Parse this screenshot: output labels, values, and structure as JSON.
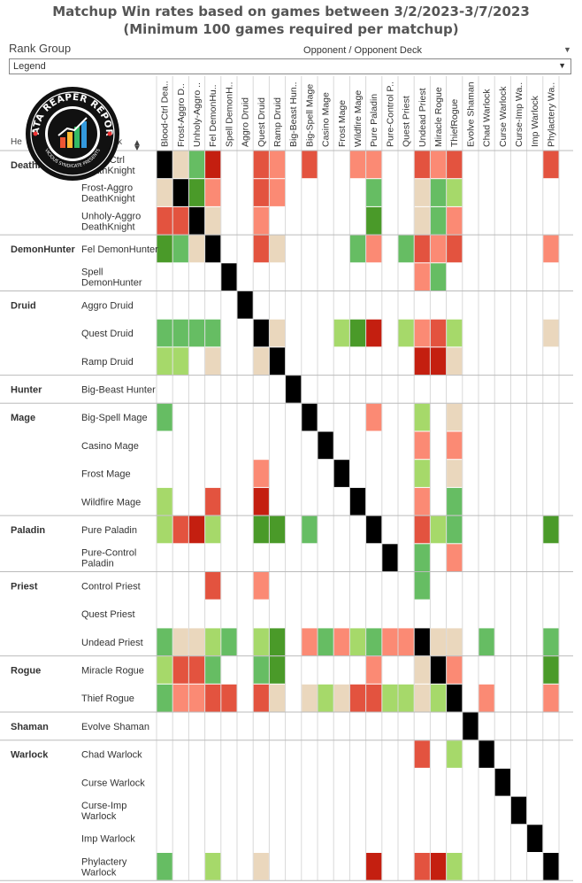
{
  "header": {
    "title_line1": "Matchup Win rates based on games between 3/2/2023-3/7/2023",
    "title_line2": "(Minimum 100 games required per matchup)"
  },
  "filters": {
    "rank_group_label": "Rank Group",
    "rank_group_value": "Legend",
    "opponent_header": "Opponent / Opponent Deck"
  },
  "logo": {
    "top_text": "DATA REAPER REPORT",
    "bottom_text": "VICIOUS SYNDICATE PRESENTS"
  },
  "colors": {
    "black": "#000000",
    "neutral": "#ead7bd",
    "light_green": "#a6d96a",
    "mid_green": "#66bd63",
    "dark_green": "#4a9a29",
    "light_red": "#fb8a74",
    "mid_red": "#e3533f",
    "dark_red": "#c41f10"
  },
  "chart_data": {
    "type": "heatmap",
    "title": "Matchup Win rates based on games between 3/2/2023-3/7/2023",
    "subtitle": "(Minimum 100 games required per matchup)",
    "row_header_fragments": [
      "He",
      "k"
    ],
    "columns": [
      "Blood-Ctrl Dea..",
      "Frost-Aggro D..",
      "Unholy-Aggro ..",
      "Fel DemonHu..",
      "Spell DemonH..",
      "Aggro Druid",
      "Quest Druid",
      "Ramp Druid",
      "Big-Beast Hun..",
      "Big-Spell Mage",
      "Casino Mage",
      "Frost Mage",
      "Wildfire Mage",
      "Pure Paladin",
      "Pure-Control P..",
      "Quest Priest",
      "Undead Priest",
      "Miracle Rogue",
      "ThiefRogue",
      "Evolve Shaman",
      "Chad Warlock",
      "Curse Warlock",
      "Curse-Imp Wa..",
      "Imp Warlock",
      "Phylactery Wa.."
    ],
    "groups": [
      {
        "class": "DeathKnight",
        "rows": [
          "Blood-Ctrl DeathKnight",
          "Frost-Aggro DeathKnight",
          "Unholy-Aggro DeathKnight"
        ]
      },
      {
        "class": "DemonHunter",
        "rows": [
          "Fel DemonHunter",
          "Spell DemonHunter"
        ]
      },
      {
        "class": "Druid",
        "rows": [
          "Aggro Druid",
          "Quest Druid",
          "Ramp Druid"
        ]
      },
      {
        "class": "Hunter",
        "rows": [
          "Big-Beast Hunter"
        ]
      },
      {
        "class": "Mage",
        "rows": [
          "Big-Spell Mage",
          "Casino Mage",
          "Frost Mage",
          "Wildfire Mage"
        ]
      },
      {
        "class": "Paladin",
        "rows": [
          "Pure Paladin",
          "Pure-Control Paladin"
        ]
      },
      {
        "class": "Priest",
        "rows": [
          "Control Priest",
          "Quest Priest",
          "Undead Priest"
        ]
      },
      {
        "class": "Rogue",
        "rows": [
          "Miracle Rogue",
          "Thief Rogue"
        ]
      },
      {
        "class": "Shaman",
        "rows": [
          "Evolve Shaman"
        ]
      },
      {
        "class": "Warlock",
        "rows": [
          "Chad Warlock",
          "Curse Warlock",
          "Curse-Imp Warlock",
          "Imp Warlock",
          "Phylactery Warlock"
        ]
      }
    ],
    "row_labels": [
      [
        "Blood-Ctrl",
        "DeathKnight"
      ],
      [
        "Frost-Aggro",
        "DeathKnight"
      ],
      [
        "Unholy-Aggro",
        "DeathKnight"
      ],
      [
        "Fel DemonHunter"
      ],
      [
        "Spell",
        "DemonHunter"
      ],
      [
        "Aggro Druid"
      ],
      [
        "Quest Druid"
      ],
      [
        "Ramp Druid"
      ],
      [
        "Big-Beast Hunter"
      ],
      [
        "Big-Spell Mage"
      ],
      [
        "Casino Mage"
      ],
      [
        "Frost Mage"
      ],
      [
        "Wildfire Mage"
      ],
      [
        "Pure Paladin"
      ],
      [
        "Pure-Control",
        "Paladin"
      ],
      [
        "Control Priest"
      ],
      [
        "Quest Priest"
      ],
      [
        "Undead Priest"
      ],
      [
        "Miracle Rogue"
      ],
      [
        "Thief Rogue"
      ],
      [
        "Evolve Shaman"
      ],
      [
        "Chad Warlock"
      ],
      [
        "Curse Warlock"
      ],
      [
        "Curse-Imp",
        "Warlock"
      ],
      [
        "Imp Warlock"
      ],
      [
        "Phylactery",
        "Warlock"
      ]
    ],
    "row_class_labels": [
      "DeathKnight",
      "",
      "",
      "DemonHunter",
      "",
      "Druid",
      "",
      "",
      "Hunter",
      "Mage",
      "",
      "",
      "",
      "Paladin",
      "",
      "Priest",
      "",
      "",
      "Rogue",
      "",
      "Shaman",
      "Warlock",
      "",
      "",
      "",
      ""
    ],
    "row_column_index": [
      0,
      1,
      2,
      3,
      4,
      5,
      6,
      7,
      8,
      9,
      10,
      11,
      12,
      13,
      14,
      null,
      15,
      16,
      17,
      18,
      19,
      20,
      21,
      22,
      23,
      24
    ],
    "legend_note": "cell codes: K=mirror, N=neutral, LG=light green, MG=mid green, DG=dark green, LR=light red, MR=mid red, DR=dark red, blank=insufficient games",
    "cells": [
      [
        "K",
        "N",
        "MG",
        "DR",
        "",
        "",
        "MR",
        "LR",
        "",
        "MR",
        "",
        "",
        "LR",
        "LR",
        "",
        "",
        "MR",
        "LR",
        "MR",
        "",
        "",
        "",
        "",
        "",
        "MR"
      ],
      [
        "N",
        "K",
        "DG",
        "LR",
        "",
        "",
        "MR",
        "LR",
        "",
        "",
        "",
        "",
        "",
        "MG",
        "",
        "",
        "N",
        "MG",
        "LG",
        "",
        "",
        "",
        "",
        "",
        ""
      ],
      [
        "MR",
        "MR",
        "K",
        "N",
        "",
        "",
        "LR",
        "",
        "",
        "",
        "",
        "",
        "",
        "DG",
        "",
        "",
        "N",
        "MG",
        "LR",
        "",
        "",
        "",
        "",
        "",
        ""
      ],
      [
        "DG",
        "MG",
        "N",
        "K",
        "",
        "",
        "MR",
        "N",
        "",
        "",
        "",
        "",
        "MG",
        "LR",
        "",
        "MG",
        "MR",
        "LR",
        "MR",
        "",
        "",
        "",
        "",
        "",
        "LR"
      ],
      [
        "",
        "",
        "",
        "",
        "K",
        "",
        "",
        "",
        "",
        "",
        "",
        "",
        "",
        "",
        "",
        "",
        "LR",
        "MG",
        "",
        "",
        "",
        "",
        "",
        "",
        ""
      ],
      [
        "",
        "",
        "",
        "",
        "",
        "K",
        "",
        "",
        "",
        "",
        "",
        "",
        "",
        "",
        "",
        "",
        "",
        "",
        "",
        "",
        "",
        "",
        "",
        "",
        ""
      ],
      [
        "MG",
        "MG",
        "MG",
        "MG",
        "",
        "",
        "K",
        "N",
        "",
        "",
        "",
        "LG",
        "DG",
        "DR",
        "",
        "LG",
        "LR",
        "MR",
        "LG",
        "",
        "",
        "",
        "",
        "",
        "N"
      ],
      [
        "LG",
        "LG",
        "",
        "N",
        "",
        "",
        "N",
        "K",
        "",
        "",
        "",
        "",
        "",
        "",
        "",
        "",
        "DR",
        "DR",
        "N",
        "",
        "",
        "",
        "",
        "",
        ""
      ],
      [
        "",
        "",
        "",
        "",
        "",
        "",
        "",
        "",
        "K",
        "",
        "",
        "",
        "",
        "",
        "",
        "",
        "",
        "",
        "",
        "",
        "",
        "",
        "",
        "",
        ""
      ],
      [
        "MG",
        "",
        "",
        "",
        "",
        "",
        "",
        "",
        "",
        "K",
        "",
        "",
        "",
        "LR",
        "",
        "",
        "LG",
        "",
        "N",
        "",
        "",
        "",
        "",
        "",
        ""
      ],
      [
        "",
        "",
        "",
        "",
        "",
        "",
        "",
        "",
        "",
        "",
        "K",
        "",
        "",
        "",
        "",
        "",
        "LR",
        "",
        "LR",
        "",
        "",
        "",
        "",
        "",
        ""
      ],
      [
        "",
        "",
        "",
        "",
        "",
        "",
        "LR",
        "",
        "",
        "",
        "",
        "K",
        "",
        "",
        "",
        "",
        "LG",
        "",
        "N",
        "",
        "",
        "",
        "",
        "",
        ""
      ],
      [
        "LG",
        "",
        "",
        "MR",
        "",
        "",
        "DR",
        "",
        "",
        "",
        "",
        "",
        "K",
        "",
        "",
        "",
        "LR",
        "",
        "MG",
        "",
        "",
        "",
        "",
        "",
        ""
      ],
      [
        "LG",
        "MR",
        "DR",
        "LG",
        "",
        "",
        "DG",
        "DG",
        "",
        "MG",
        "",
        "",
        "",
        "K",
        "",
        "",
        "MR",
        "LG",
        "MG",
        "",
        "",
        "",
        "",
        "",
        "DG"
      ],
      [
        "",
        "",
        "",
        "",
        "",
        "",
        "",
        "",
        "",
        "",
        "",
        "",
        "",
        "",
        "K",
        "",
        "MG",
        "",
        "LR",
        "",
        "",
        "",
        "",
        "",
        ""
      ],
      [
        "",
        "",
        "",
        "MR",
        "",
        "",
        "LR",
        "",
        "",
        "",
        "",
        "",
        "",
        "",
        "",
        "",
        "MG",
        "",
        "",
        "",
        "",
        "",
        "",
        "",
        ""
      ],
      [
        "",
        "",
        "",
        "",
        "",
        "",
        "",
        "",
        "",
        "",
        "",
        "",
        "",
        "",
        "",
        "",
        "",
        "",
        "",
        "",
        "",
        "",
        "",
        "",
        ""
      ],
      [
        "MG",
        "N",
        "N",
        "LG",
        "MG",
        "",
        "LG",
        "DG",
        "",
        "LR",
        "MG",
        "LR",
        "LG",
        "MG",
        "LR",
        "LR",
        "K",
        "N",
        "N",
        "",
        "MG",
        "",
        "",
        "",
        "MG"
      ],
      [
        "LG",
        "MR",
        "MR",
        "MG",
        "",
        "",
        "MG",
        "DG",
        "",
        "",
        "",
        "",
        "",
        "LR",
        "",
        "",
        "N",
        "K",
        "LR",
        "",
        "",
        "",
        "",
        "",
        "DG"
      ],
      [
        "MG",
        "LR",
        "LR",
        "MR",
        "MR",
        "",
        "MR",
        "N",
        "",
        "N",
        "LG",
        "N",
        "MR",
        "MR",
        "LG",
        "LG",
        "N",
        "LG",
        "K",
        "",
        "LR",
        "",
        "",
        "",
        "LR"
      ],
      [
        "",
        "",
        "",
        "",
        "",
        "",
        "",
        "",
        "",
        "",
        "",
        "",
        "",
        "",
        "",
        "",
        "",
        "",
        "",
        "K",
        "",
        "",
        "",
        "",
        ""
      ],
      [
        "",
        "",
        "",
        "",
        "",
        "",
        "",
        "",
        "",
        "",
        "",
        "",
        "",
        "",
        "",
        "",
        "MR",
        "",
        "LG",
        "",
        "K",
        "",
        "",
        "",
        ""
      ],
      [
        "",
        "",
        "",
        "",
        "",
        "",
        "",
        "",
        "",
        "",
        "",
        "",
        "",
        "",
        "",
        "",
        "",
        "",
        "",
        "",
        "",
        "K",
        "",
        "",
        ""
      ],
      [
        "",
        "",
        "",
        "",
        "",
        "",
        "",
        "",
        "",
        "",
        "",
        "",
        "",
        "",
        "",
        "",
        "",
        "",
        "",
        "",
        "",
        "",
        "K",
        "",
        ""
      ],
      [
        "",
        "",
        "",
        "",
        "",
        "",
        "",
        "",
        "",
        "",
        "",
        "",
        "",
        "",
        "",
        "",
        "",
        "",
        "",
        "",
        "",
        "",
        "",
        "K",
        ""
      ],
      [
        "MG",
        "",
        "",
        "LG",
        "",
        "",
        "N",
        "",
        "",
        "",
        "",
        "",
        "",
        "DR",
        "",
        "",
        "MR",
        "DR",
        "LG",
        "",
        "",
        "",
        "",
        "",
        "K"
      ]
    ]
  }
}
